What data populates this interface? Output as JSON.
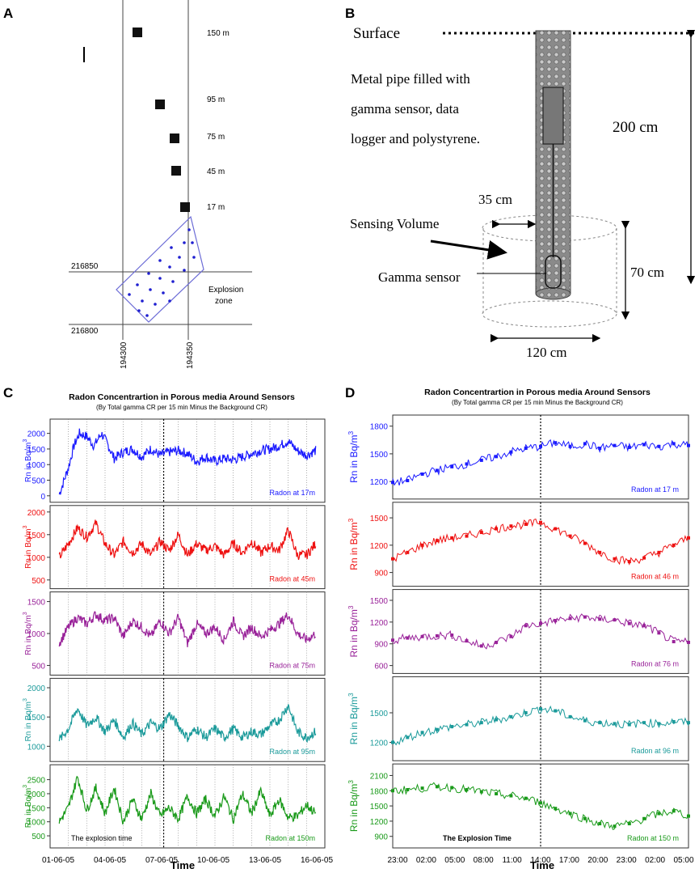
{
  "panel_letters": {
    "a": "A",
    "b": "B",
    "c": "C",
    "d": "D"
  },
  "panel_a": {
    "sensors": [
      {
        "label": "150 m"
      },
      {
        "label": "95 m"
      },
      {
        "label": "75 m"
      },
      {
        "label": "45 m"
      },
      {
        "label": "17 m"
      }
    ],
    "northing_labels": [
      "216850",
      "216800"
    ],
    "easting_labels": [
      "194300",
      "194350"
    ],
    "explosion_zone_label": [
      "Explosion",
      "zone"
    ],
    "colors": {
      "sensor": "#111111",
      "zone_outline": "#6b6bd6",
      "zone_dots": "#1f1fd0",
      "grid": "#444444"
    }
  },
  "panel_b": {
    "surface_label": "Surface",
    "pipe_description": [
      "Metal pipe filled with",
      "gamma sensor, data",
      "logger and polystyrene."
    ],
    "sensing_volume_label": "Sensing Volume",
    "gamma_sensor_label": "Gamma sensor",
    "depth_label": "200 cm",
    "radius_label": "35 cm",
    "height_label": "70 cm",
    "diameter_label": "120 cm"
  },
  "chart_data": [
    {
      "id": "C",
      "type": "line",
      "title": "Radon Concentrartion in Porous media Around  Sensors",
      "subtitle": "(By Total gamma CR per 15 min Minus the Background CR)",
      "xlabel": "Time",
      "x_tick_labels": [
        "01-06-05",
        "04-06-05",
        "07-06-05",
        "10-06-05",
        "13-06-05",
        "16-06-05"
      ],
      "x_range": [
        0,
        15
      ],
      "event_x": 6.2,
      "event_label": "The explosion time",
      "ylabel": "Rn in Bq/m",
      "ylabel_sup": "3",
      "series": [
        {
          "name": "Radon at 17m",
          "color": "#1a1aff",
          "ylim": [
            0,
            2250
          ],
          "yticks": [
            0,
            500,
            1000,
            1500,
            2000
          ],
          "x": [
            0.5,
            1,
            1.3,
            1.6,
            2,
            2.4,
            2.8,
            3.1,
            3.5,
            4,
            4.5,
            5,
            5.5,
            6,
            6.5,
            7,
            7.5,
            8,
            8.5,
            9,
            9.5,
            10,
            10.5,
            11,
            11.5,
            12,
            12.5,
            13,
            13.5,
            14,
            14.5
          ],
          "values": [
            50,
            900,
            1600,
            2000,
            1900,
            1600,
            2000,
            1700,
            1200,
            1400,
            1500,
            1250,
            1500,
            1300,
            1400,
            1450,
            1350,
            1100,
            1250,
            1100,
            1200,
            1150,
            1250,
            1350,
            1450,
            1500,
            1600,
            1750,
            1450,
            1300,
            1450
          ]
        },
        {
          "name": "Radon at 45m",
          "color": "#ee1111",
          "ylim": [
            450,
            2000
          ],
          "yticks": [
            500,
            1000,
            1500,
            2000
          ],
          "x": [
            0.5,
            1,
            1.5,
            2,
            2.5,
            3,
            3.5,
            4,
            4.5,
            5,
            5.5,
            6,
            6.5,
            7,
            7.5,
            8,
            8.5,
            9,
            9.5,
            10,
            10.5,
            11,
            11.5,
            12,
            12.5,
            13,
            13.5,
            14,
            14.5
          ],
          "values": [
            1000,
            1300,
            1650,
            1450,
            1750,
            1300,
            1050,
            1350,
            1100,
            1300,
            1050,
            1350,
            1150,
            1500,
            1050,
            1300,
            1150,
            1250,
            1050,
            1300,
            1100,
            1350,
            1100,
            1250,
            1150,
            1600,
            1050,
            1050,
            1300
          ]
        },
        {
          "name": "Radon at 75m",
          "color": "#992299",
          "ylim": [
            450,
            1550
          ],
          "yticks": [
            500,
            1000,
            1500
          ],
          "x": [
            0.5,
            1,
            1.5,
            2,
            2.5,
            3,
            3.5,
            4,
            4.5,
            5,
            5.5,
            6,
            6.5,
            7,
            7.5,
            8,
            8.5,
            9,
            9.5,
            10,
            10.5,
            11,
            11.5,
            12,
            12.5,
            13,
            13.5,
            14,
            14.5
          ],
          "values": [
            850,
            1100,
            1250,
            1150,
            1300,
            1200,
            1250,
            950,
            1200,
            1100,
            950,
            1200,
            1000,
            1250,
            850,
            1150,
            1000,
            1100,
            900,
            1200,
            950,
            1100,
            950,
            1050,
            1150,
            1300,
            1000,
            900,
            1000
          ]
        },
        {
          "name": "Radon at 95m",
          "color": "#1a9a9a",
          "ylim": [
            850,
            2050
          ],
          "yticks": [
            1000,
            1500,
            2000
          ],
          "x": [
            0.5,
            1,
            1.5,
            2,
            2.5,
            3,
            3.5,
            4,
            4.5,
            5,
            5.5,
            6,
            6.5,
            7,
            7.5,
            8,
            8.5,
            9,
            9.5,
            10,
            10.5,
            11,
            11.5,
            12,
            12.5,
            13,
            13.5,
            14,
            14.5
          ],
          "values": [
            1100,
            1300,
            1650,
            1350,
            1500,
            1250,
            1450,
            1150,
            1400,
            1200,
            1400,
            1300,
            1550,
            1350,
            1150,
            1300,
            1150,
            1300,
            1150,
            1300,
            1150,
            1250,
            1200,
            1350,
            1450,
            1700,
            1250,
            1150,
            1250
          ]
        },
        {
          "name": "Radon at 150m",
          "color": "#1a9a1a",
          "ylim": [
            300,
            2800
          ],
          "yticks": [
            500,
            1000,
            1500,
            2000,
            2500
          ],
          "x": [
            0.5,
            1,
            1.5,
            2,
            2.5,
            3,
            3.5,
            4,
            4.5,
            5,
            5.5,
            6,
            6.5,
            7,
            7.5,
            8,
            8.5,
            9,
            9.5,
            10,
            10.5,
            11,
            11.5,
            12,
            12.5,
            13,
            13.5,
            14,
            14.5
          ],
          "values": [
            1000,
            1500,
            2600,
            1400,
            2200,
            1300,
            2200,
            1000,
            1800,
            1100,
            2000,
            1200,
            1500,
            1100,
            1900,
            1300,
            1800,
            1200,
            1900,
            1100,
            2000,
            1300,
            2100,
            1200,
            1800,
            1150,
            1200,
            1600,
            1300
          ]
        }
      ]
    },
    {
      "id": "D",
      "type": "line",
      "title": "Radon Concentrartion in Porous media Around  Sensors",
      "subtitle": "(By Total gamma CR per 15 min Minus the Background CR)",
      "xlabel": "Time",
      "x_tick_labels": [
        "23:00",
        "02:00",
        "05:00",
        "08:00",
        "11:00",
        "14:00",
        "17:00",
        "20:00",
        "23:00",
        "02:00",
        "05:00"
      ],
      "x_range": [
        0,
        30
      ],
      "event_x": 15,
      "event_label": "The Explosion Time",
      "ylabel": "Rn in Bq/m",
      "ylabel_sup": "3",
      "series": [
        {
          "name": "Radon at 17 m",
          "color": "#1a1aff",
          "ylim": [
            1080,
            1850
          ],
          "yticks": [
            1200,
            1500,
            1800
          ],
          "x": [
            0,
            1.5,
            3,
            4.5,
            6,
            7.5,
            9,
            10.5,
            12,
            13.5,
            15,
            16.5,
            18,
            19.5,
            21,
            22.5,
            24,
            25.5,
            27,
            28.5,
            30
          ],
          "values": [
            1190,
            1210,
            1280,
            1320,
            1360,
            1390,
            1430,
            1470,
            1520,
            1560,
            1580,
            1620,
            1580,
            1610,
            1560,
            1590,
            1570,
            1600,
            1580,
            1610,
            1590
          ]
        },
        {
          "name": "Radon at 46 m",
          "color": "#ee1111",
          "ylim": [
            820,
            1600
          ],
          "yticks": [
            900,
            1200,
            1500
          ],
          "x": [
            0,
            1.5,
            3,
            4.5,
            6,
            7.5,
            9,
            10.5,
            12,
            13.5,
            15,
            16.5,
            18,
            19.5,
            21,
            22.5,
            24,
            25.5,
            27,
            28.5,
            30
          ],
          "values": [
            1050,
            1120,
            1200,
            1250,
            1280,
            1300,
            1340,
            1380,
            1410,
            1430,
            1450,
            1380,
            1300,
            1220,
            1120,
            1050,
            1020,
            1060,
            1120,
            1200,
            1280
          ]
        },
        {
          "name": "Radon at 76 m",
          "color": "#992299",
          "ylim": [
            580,
            1560
          ],
          "yticks": [
            600,
            900,
            1200,
            1500
          ],
          "x": [
            0,
            1.5,
            3,
            4.5,
            6,
            7.5,
            9,
            10.5,
            12,
            13.5,
            15,
            16.5,
            18,
            19.5,
            21,
            22.5,
            24,
            25.5,
            27,
            28.5,
            30
          ],
          "values": [
            950,
            980,
            1000,
            1010,
            1020,
            940,
            870,
            920,
            1000,
            1150,
            1180,
            1220,
            1250,
            1270,
            1240,
            1230,
            1180,
            1150,
            1050,
            930,
            920
          ]
        },
        {
          "name": "Radon at 96 m",
          "color": "#1a9a9a",
          "ylim": [
            1080,
            1800
          ],
          "yticks": [
            1200,
            1500
          ],
          "x": [
            0,
            1.5,
            3,
            4.5,
            6,
            7.5,
            9,
            10.5,
            12,
            13.5,
            15,
            16.5,
            18,
            19.5,
            21,
            22.5,
            24,
            25.5,
            27,
            28.5,
            30
          ],
          "values": [
            1200,
            1250,
            1300,
            1330,
            1360,
            1380,
            1400,
            1430,
            1460,
            1500,
            1540,
            1520,
            1460,
            1420,
            1400,
            1390,
            1380,
            1400,
            1390,
            1410,
            1400
          ]
        },
        {
          "name": "Radon at 150 m",
          "color": "#1a9a1a",
          "ylim": [
            800,
            2200
          ],
          "yticks": [
            900,
            1200,
            1500,
            1800,
            2100
          ],
          "x": [
            0,
            1.5,
            3,
            4.5,
            6,
            7.5,
            9,
            10.5,
            12,
            13.5,
            15,
            16.5,
            18,
            19.5,
            21,
            22.5,
            24,
            25.5,
            27,
            28.5,
            30
          ],
          "values": [
            1800,
            1820,
            1850,
            1880,
            1860,
            1820,
            1780,
            1740,
            1700,
            1650,
            1560,
            1450,
            1350,
            1250,
            1150,
            1100,
            1150,
            1250,
            1350,
            1400,
            1300
          ]
        }
      ]
    }
  ]
}
